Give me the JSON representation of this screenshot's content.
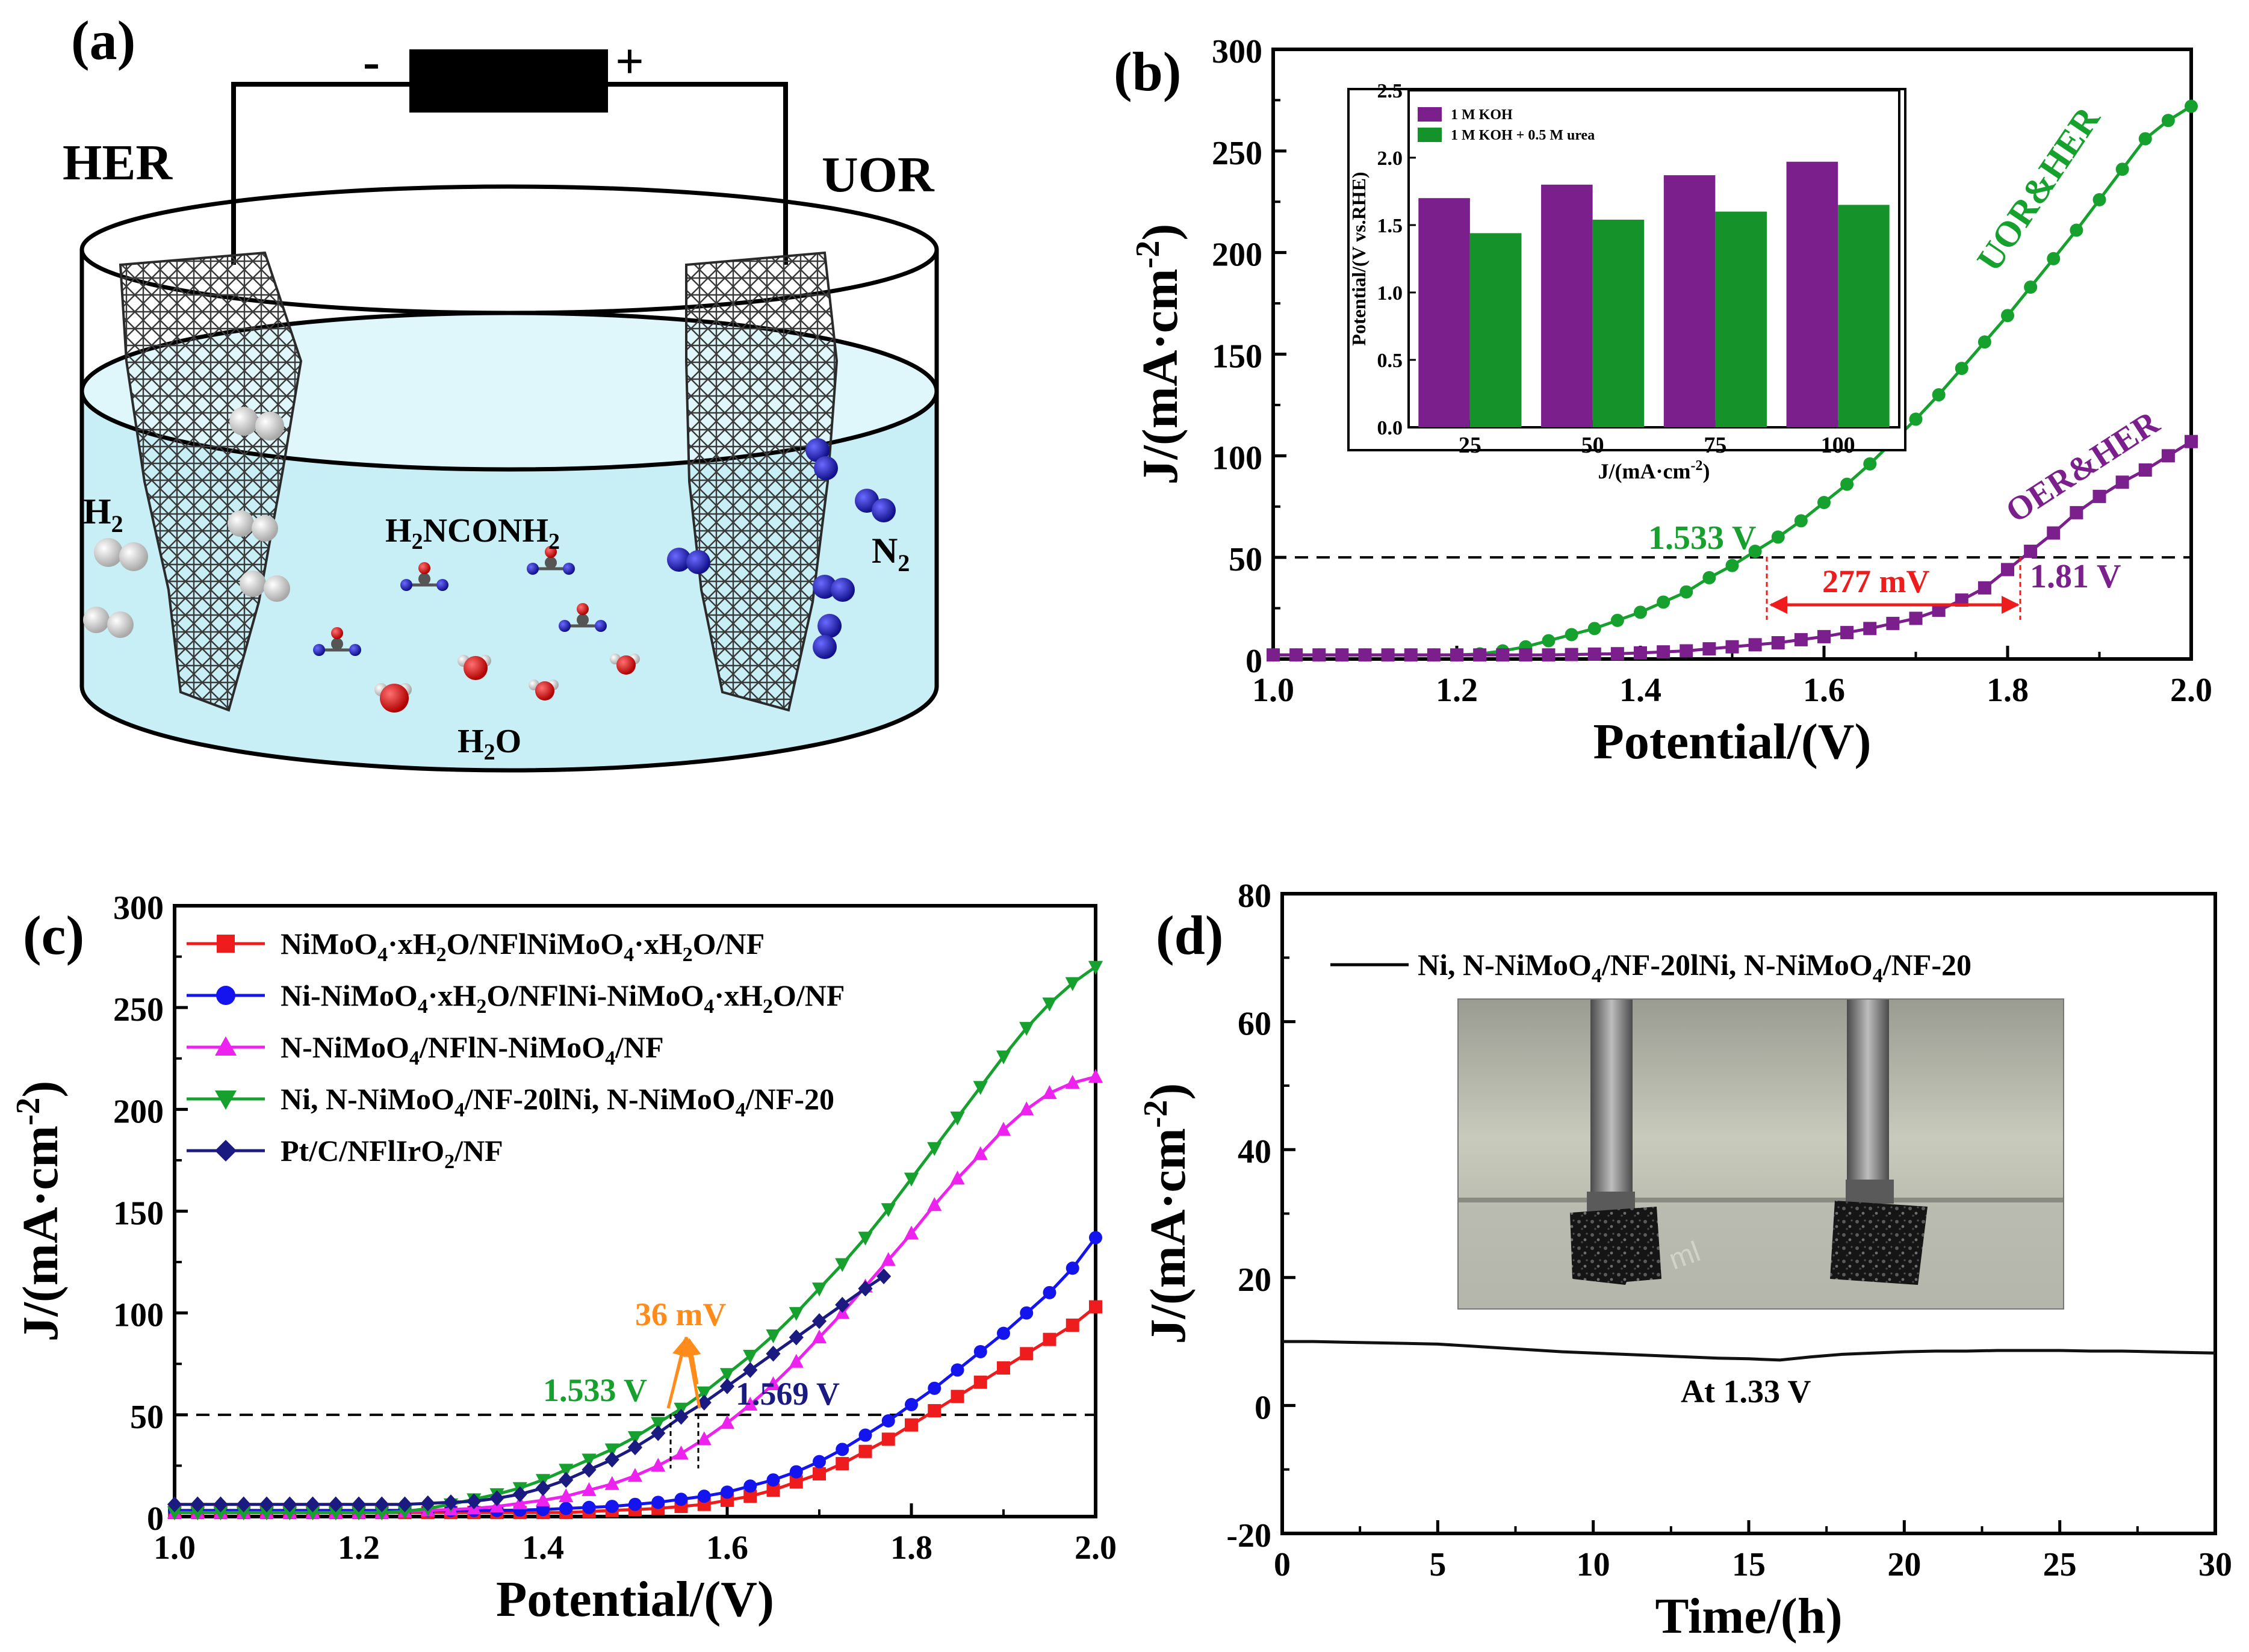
{
  "colors": {
    "green": "#16a02e",
    "purple": "#7a1f8c",
    "red": "#ee1c1c",
    "blue": "#1414ee",
    "magenta": "#ee22ee",
    "navy": "#1a1a80",
    "orange": "#ff8c1a",
    "cell_liquid": "#c8eef6",
    "bar_purple": "#7a1f8c",
    "bar_green": "#16922a"
  },
  "panel_a": {
    "label": "(a)",
    "her_label": "HER",
    "uor_label": "UOR",
    "minus": "-",
    "plus": "+",
    "h2_label": "H",
    "h2_sub": "2",
    "n2_label": "N",
    "n2_sub": "2",
    "urea_label": "H",
    "urea_sub1": "2",
    "urea_mid": "NCONH",
    "urea_sub2": "2",
    "water_label": "H",
    "water_sub": "2",
    "water_tail": "O",
    "icons": [
      "battery-icon",
      "electrode-icon",
      "molecule-icon"
    ]
  },
  "panel_b": {
    "label": "(b)",
    "annot_1533": "1.533 V",
    "annot_181": "1.81 V",
    "annot_277": "277 mV",
    "ylabel_text": "J/(mA·cm",
    "ylabel_sup": "-2",
    "ylabel_close": ")",
    "xlabel": "Potential/(V)"
  },
  "panel_c": {
    "label": "(c)",
    "annot_36": "36 mV",
    "annot_1533": "1.533 V",
    "annot_1569": "1.569 V",
    "legend_1_a": "NiMoO",
    "legend_1_b": "4",
    "legend_1_c": "·xH",
    "legend_1_d": "2",
    "legend_1_e": "O/NFlNiMoO",
    "legend_1_f": "4",
    "legend_1_g": "·xH",
    "legend_1_h": "2",
    "legend_1_i": "O/NF",
    "legend_2_a": "Ni-NiMoO",
    "legend_2_b": "4",
    "legend_2_c": "·xH",
    "legend_2_d": "2",
    "legend_2_e": "O/NFlNi-NiMoO",
    "legend_2_f": "4",
    "legend_2_g": "·xH",
    "legend_2_h": "2",
    "legend_2_i": "O/NF",
    "legend_3_a": "N-NiMoO",
    "legend_3_b": "4",
    "legend_3_c": "/NFlN-NiMoO",
    "legend_3_d": "4",
    "legend_3_e": "/NF",
    "legend_4_a": "Ni, N-NiMoO",
    "legend_4_b": "4",
    "legend_4_c": "/NF-20lNi, N-NiMoO",
    "legend_4_d": "4",
    "legend_4_e": "/NF-20",
    "legend_5_a": "Pt/C/NFlIrO",
    "legend_5_b": "2",
    "legend_5_c": "/NF",
    "ylabel_text": "J/(mA·cm",
    "ylabel_sup": "-2",
    "ylabel_close": ")",
    "xlabel": "Potential/(V)"
  },
  "panel_d": {
    "label": "(d)",
    "legend_a": "Ni, N-NiMoO",
    "legend_b": "4",
    "legend_c": "/NF-20lNi, N-NiMoO",
    "legend_d": "4",
    "legend_e": "/NF-20",
    "annot_133": "At 1.33 V",
    "ylabel_text": "J/(mA·cm",
    "ylabel_sup": "-2",
    "ylabel_close": ")",
    "xlabel": "Time/(h)",
    "photo_icon": "electrolyzer-photo"
  },
  "chart_data": [
    {
      "id": "b",
      "type": "line",
      "xlim": [
        1.0,
        2.0
      ],
      "ylim": [
        0,
        300
      ],
      "xticks": [
        1.0,
        1.2,
        1.4,
        1.6,
        1.8,
        2.0
      ],
      "yticks": [
        0,
        50,
        100,
        150,
        200,
        250,
        300
      ],
      "xlabel": "Potential/(V)",
      "ylabel": "J/(mA·cm-2)",
      "hline": 50,
      "series": [
        {
          "name": "UOR&HER",
          "color": "#16a02e",
          "marker": "circle",
          "x": [
            1.0,
            1.025,
            1.05,
            1.075,
            1.1,
            1.125,
            1.15,
            1.175,
            1.2,
            1.225,
            1.25,
            1.275,
            1.3,
            1.325,
            1.35,
            1.375,
            1.4,
            1.425,
            1.45,
            1.475,
            1.5,
            1.525,
            1.55,
            1.575,
            1.6,
            1.625,
            1.65,
            1.675,
            1.7,
            1.725,
            1.75,
            1.775,
            1.8,
            1.825,
            1.85,
            1.875,
            1.9,
            1.925,
            1.95,
            1.975,
            2.0
          ],
          "y": [
            2,
            2,
            2,
            2,
            2,
            2,
            2,
            2,
            2,
            2.5,
            4,
            6,
            9,
            12,
            15,
            19,
            23,
            28,
            33,
            40,
            46,
            53,
            60,
            68,
            77,
            86,
            96,
            107,
            118,
            130,
            143,
            156,
            169,
            183,
            197,
            211,
            226,
            241,
            256,
            265,
            272
          ]
        },
        {
          "name": "OER&HER",
          "color": "#7a1f8c",
          "marker": "square",
          "x": [
            1.0,
            1.025,
            1.05,
            1.075,
            1.1,
            1.125,
            1.15,
            1.175,
            1.2,
            1.225,
            1.25,
            1.275,
            1.3,
            1.325,
            1.35,
            1.375,
            1.4,
            1.425,
            1.45,
            1.475,
            1.5,
            1.525,
            1.55,
            1.575,
            1.6,
            1.625,
            1.65,
            1.675,
            1.7,
            1.725,
            1.75,
            1.775,
            1.8,
            1.825,
            1.85,
            1.875,
            1.9,
            1.925,
            1.95,
            1.975,
            2.0
          ],
          "y": [
            2,
            2,
            2,
            2,
            2,
            2,
            2,
            2,
            2,
            2,
            2,
            2,
            2,
            2.2,
            2.4,
            2.6,
            3,
            3.5,
            4,
            5,
            6,
            7,
            8,
            9.5,
            11,
            13,
            15,
            17.5,
            20,
            24,
            29,
            35,
            44,
            53,
            62,
            72,
            80,
            87,
            93,
            100,
            107
          ]
        }
      ],
      "annotations": [
        "1.533 V",
        "1.81 V",
        "277 mV",
        "UOR&HER",
        "OER&HER"
      ],
      "inset": {
        "type": "bar",
        "categories": [
          "25",
          "50",
          "75",
          "100"
        ],
        "xlabel": "J/(mA·cm-2)",
        "ylabel": "Potential/(V vs.RHE)",
        "ylim": [
          0.0,
          2.5
        ],
        "yticks": [
          0.0,
          0.5,
          1.0,
          1.5,
          2.0,
          2.5
        ],
        "series": [
          {
            "name": "1 M KOH",
            "color": "#7a1f8c",
            "values": [
              1.7,
              1.8,
              1.87,
              1.97
            ]
          },
          {
            "name": "1 M KOH + 0.5 M urea",
            "color": "#16922a",
            "values": [
              1.44,
              1.54,
              1.6,
              1.65
            ]
          }
        ]
      }
    },
    {
      "id": "c",
      "type": "line",
      "xlim": [
        1.0,
        2.0
      ],
      "ylim": [
        0,
        300
      ],
      "xticks": [
        1.0,
        1.2,
        1.4,
        1.6,
        1.8,
        2.0
      ],
      "yticks": [
        0,
        50,
        100,
        150,
        200,
        250,
        300
      ],
      "xlabel": "Potential/(V)",
      "ylabel": "J/(mA·cm-2)",
      "hline": 50,
      "series": [
        {
          "name": "NiMoO4·xH2O/NFlNiMoO4·xH2O/NF",
          "color": "#ee1c1c",
          "marker": "square",
          "x": [
            1.0,
            1.025,
            1.05,
            1.075,
            1.1,
            1.125,
            1.15,
            1.175,
            1.2,
            1.225,
            1.25,
            1.275,
            1.3,
            1.325,
            1.35,
            1.375,
            1.4,
            1.425,
            1.45,
            1.475,
            1.5,
            1.525,
            1.55,
            1.575,
            1.6,
            1.625,
            1.65,
            1.675,
            1.7,
            1.725,
            1.75,
            1.775,
            1.8,
            1.825,
            1.85,
            1.875,
            1.9,
            1.925,
            1.95,
            1.975,
            2.0
          ],
          "y": [
            2,
            2,
            2,
            2,
            2,
            2,
            2,
            2,
            2,
            2,
            2,
            2,
            2,
            2,
            2,
            2,
            2,
            2,
            2.5,
            3,
            3.5,
            4,
            5,
            6,
            8,
            10,
            13,
            17,
            21,
            26,
            32,
            38,
            45,
            52,
            59,
            66,
            73,
            80,
            87,
            94,
            103
          ]
        },
        {
          "name": "Ni-NiMoO4·xH2O/NFlNi-NiMoO4·xH2O/NF",
          "color": "#1414ee",
          "marker": "circle",
          "x": [
            1.0,
            1.025,
            1.05,
            1.075,
            1.1,
            1.125,
            1.15,
            1.175,
            1.2,
            1.225,
            1.25,
            1.275,
            1.3,
            1.325,
            1.35,
            1.375,
            1.4,
            1.425,
            1.45,
            1.475,
            1.5,
            1.525,
            1.55,
            1.575,
            1.6,
            1.625,
            1.65,
            1.675,
            1.7,
            1.725,
            1.75,
            1.775,
            1.8,
            1.825,
            1.85,
            1.875,
            1.9,
            1.925,
            1.95,
            1.975,
            2.0
          ],
          "y": [
            3,
            3,
            3,
            3,
            3,
            3,
            3,
            3,
            3,
            3,
            3,
            3,
            3,
            3,
            3,
            3.2,
            3.5,
            4,
            4.5,
            5,
            6,
            7,
            8.5,
            10,
            12,
            15,
            18,
            22,
            27,
            33,
            40,
            47,
            55,
            63,
            72,
            81,
            90,
            100,
            110,
            122,
            137
          ]
        },
        {
          "name": "N-NiMoO4/NFlN-NiMoO4/NF",
          "color": "#ee22ee",
          "marker": "triangle-up",
          "x": [
            1.0,
            1.025,
            1.05,
            1.075,
            1.1,
            1.125,
            1.15,
            1.175,
            1.2,
            1.225,
            1.25,
            1.275,
            1.3,
            1.325,
            1.35,
            1.375,
            1.4,
            1.425,
            1.45,
            1.475,
            1.5,
            1.525,
            1.55,
            1.575,
            1.6,
            1.625,
            1.65,
            1.675,
            1.7,
            1.725,
            1.75,
            1.775,
            1.8,
            1.825,
            1.85,
            1.875,
            1.9,
            1.925,
            1.95,
            1.975,
            2.0
          ],
          "y": [
            2,
            2,
            2,
            2,
            2,
            2,
            2,
            2,
            2,
            2,
            2.5,
            3,
            3.5,
            4,
            5,
            6.5,
            8,
            10,
            13,
            16,
            20,
            25,
            31,
            38,
            46,
            55,
            65,
            76,
            88,
            100,
            113,
            126,
            139,
            153,
            166,
            178,
            190,
            200,
            208,
            213,
            216
          ]
        },
        {
          "name": "Ni, N-NiMoO4/NF-20lNi, N-NiMoO4/NF-20",
          "color": "#16a02e",
          "marker": "triangle-down",
          "x": [
            1.0,
            1.025,
            1.05,
            1.075,
            1.1,
            1.125,
            1.15,
            1.175,
            1.2,
            1.225,
            1.25,
            1.275,
            1.3,
            1.325,
            1.35,
            1.375,
            1.4,
            1.425,
            1.45,
            1.475,
            1.5,
            1.525,
            1.55,
            1.575,
            1.6,
            1.625,
            1.65,
            1.675,
            1.7,
            1.725,
            1.75,
            1.775,
            1.8,
            1.825,
            1.85,
            1.875,
            1.9,
            1.925,
            1.95,
            1.975,
            2.0
          ],
          "y": [
            2,
            2,
            2,
            2,
            2,
            2,
            2,
            2,
            2,
            2,
            2.5,
            4,
            6,
            8.5,
            11,
            14,
            18,
            23,
            28,
            33,
            39,
            46,
            53,
            61,
            70,
            79,
            89,
            100,
            112,
            124,
            137,
            151,
            166,
            181,
            196,
            211,
            226,
            240,
            252,
            262,
            270
          ]
        },
        {
          "name": "Pt/C/NFlIrO2/NF",
          "color": "#1a1a80",
          "marker": "diamond",
          "x": [
            1.0,
            1.025,
            1.05,
            1.075,
            1.1,
            1.125,
            1.15,
            1.175,
            1.2,
            1.225,
            1.25,
            1.275,
            1.3,
            1.325,
            1.35,
            1.375,
            1.4,
            1.425,
            1.45,
            1.475,
            1.5,
            1.525,
            1.55,
            1.575,
            1.6,
            1.625,
            1.65,
            1.675,
            1.7,
            1.725,
            1.75,
            1.77
          ],
          "y": [
            6,
            6,
            6,
            6,
            6,
            6,
            6,
            6,
            6,
            6,
            6,
            6.5,
            7,
            7.5,
            9,
            11,
            14,
            18,
            23,
            28,
            34,
            41,
            49,
            56,
            64,
            72,
            80,
            88,
            96,
            104,
            112,
            118
          ]
        }
      ],
      "annotations": [
        "36 mV",
        "1.533 V",
        "1.569 V"
      ]
    },
    {
      "id": "d",
      "type": "line",
      "xlim": [
        0,
        30
      ],
      "ylim": [
        -20,
        80
      ],
      "xticks": [
        0,
        5,
        10,
        15,
        20,
        25,
        30
      ],
      "yticks": [
        -20,
        0,
        20,
        40,
        60,
        80
      ],
      "xlabel": "Time/(h)",
      "ylabel": "J/(mA·cm-2)",
      "series": [
        {
          "name": "Ni, N-NiMoO4/NF-20lNi, N-NiMoO4/NF-20",
          "color": "#111111",
          "x": [
            0,
            1,
            2,
            3,
            4,
            5,
            6,
            7,
            8,
            9,
            10,
            11,
            12,
            13,
            14,
            15,
            16,
            17,
            18,
            19,
            20,
            21,
            22,
            23,
            24,
            25,
            26,
            27,
            28,
            29,
            30
          ],
          "y": [
            10,
            10,
            9.9,
            9.8,
            9.7,
            9.6,
            9.3,
            9,
            8.7,
            8.4,
            8.2,
            8,
            7.8,
            7.6,
            7.4,
            7.3,
            7.1,
            7.6,
            8,
            8.2,
            8.4,
            8.5,
            8.5,
            8.6,
            8.6,
            8.6,
            8.5,
            8.5,
            8.4,
            8.3,
            8.2
          ]
        }
      ],
      "annotations": [
        "At 1.33 V"
      ]
    }
  ]
}
